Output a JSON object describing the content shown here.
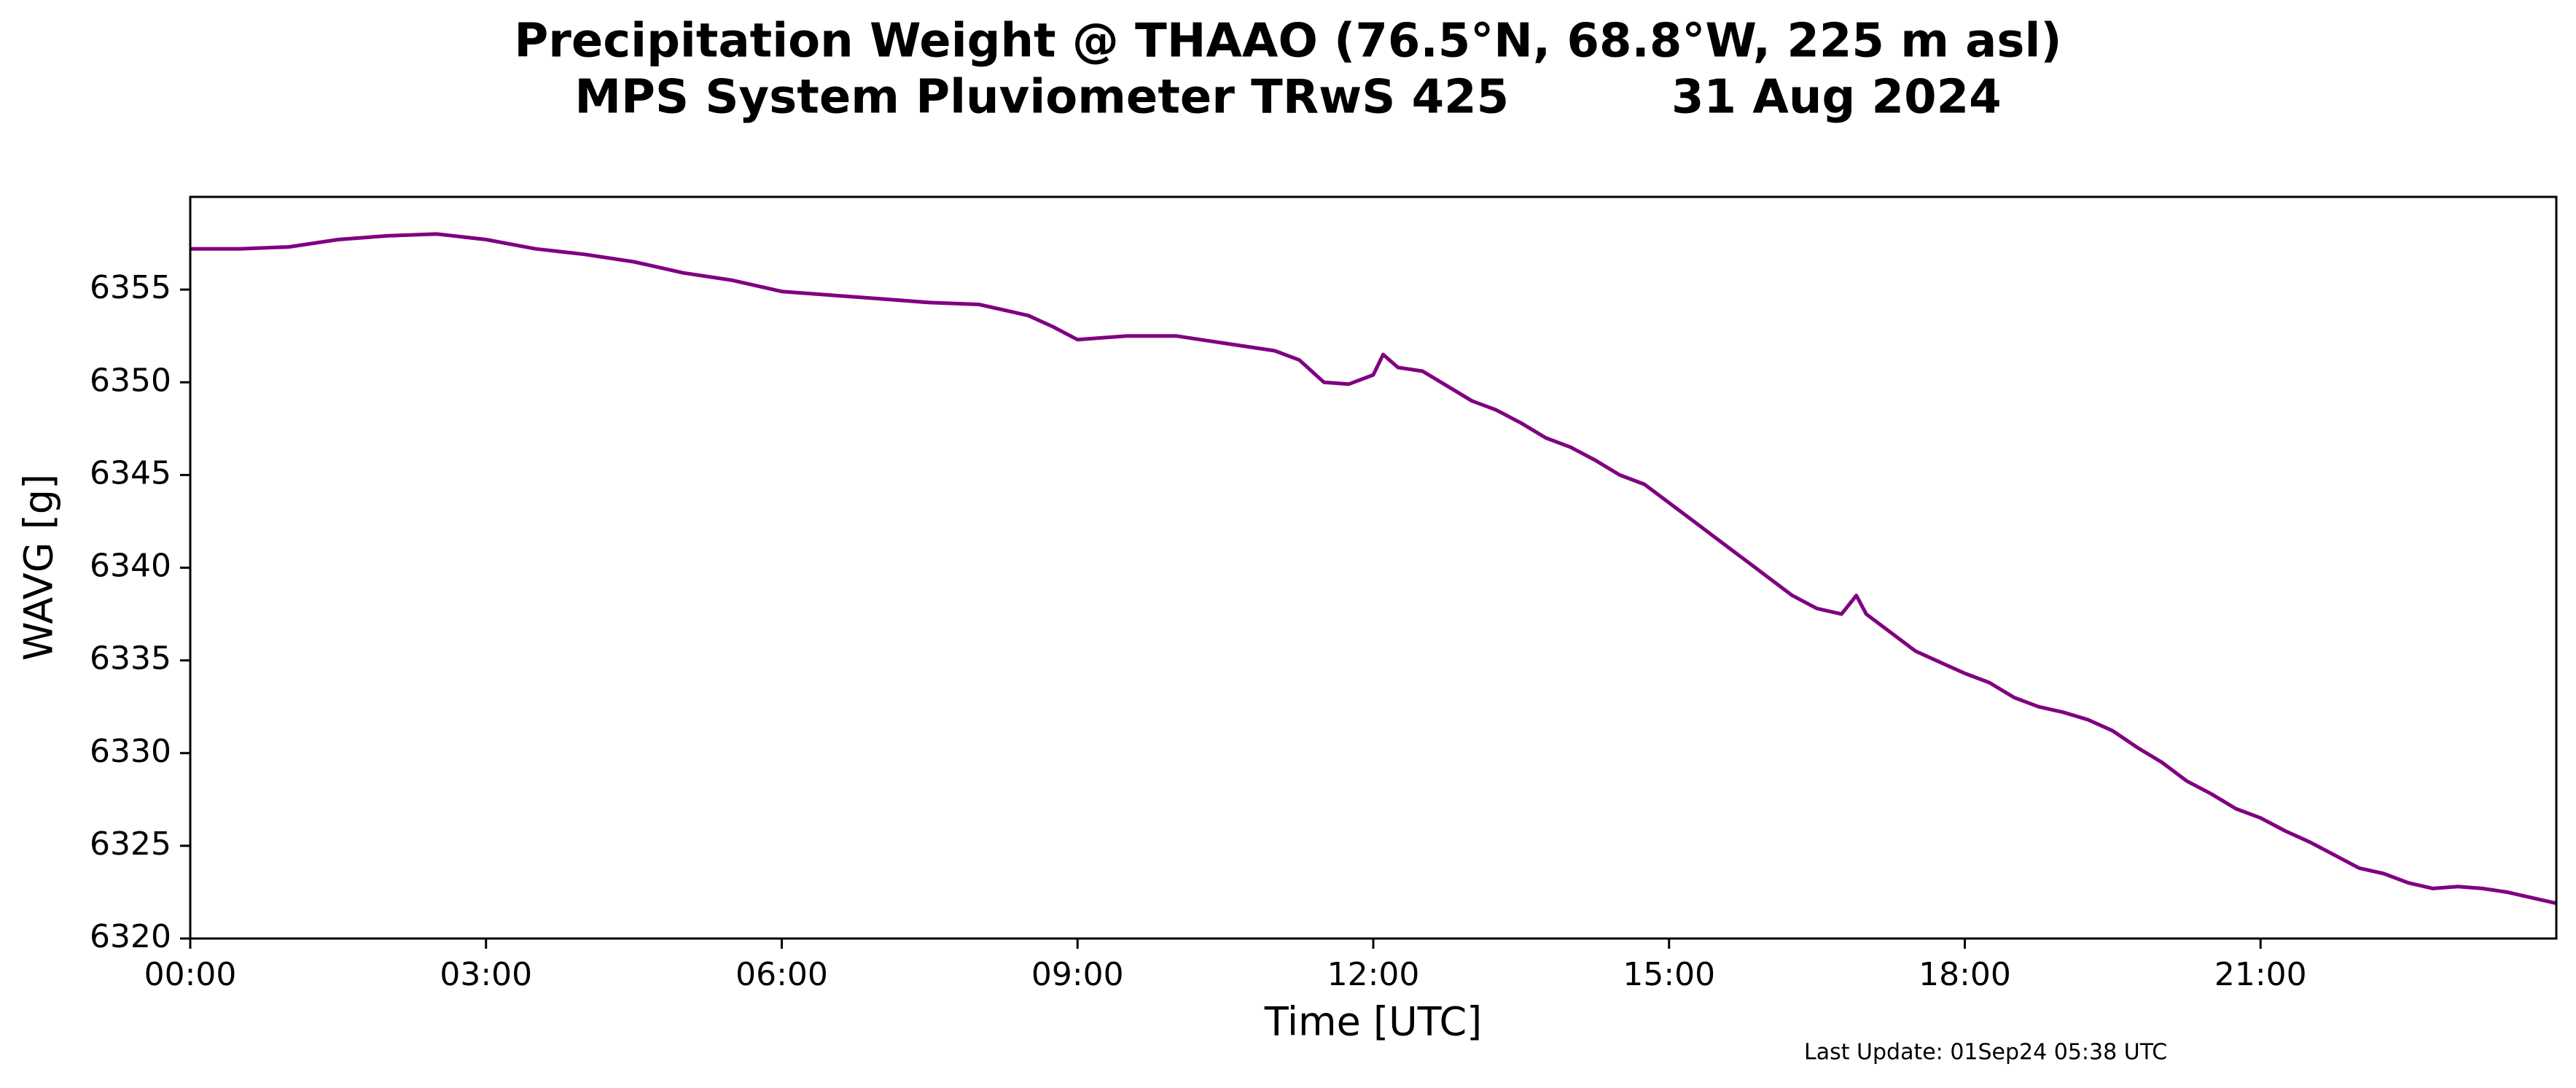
{
  "chart_data": {
    "type": "line",
    "title": "Precipitation Weight @ THAAO (76.5°N, 68.8°W, 225 m asl)",
    "subtitle": "MPS System Pluviometer TRwS 425          31 Aug 2024",
    "xlabel": "Time [UTC]",
    "ylabel": "WAVG [g]",
    "xlim": [
      0,
      24
    ],
    "ylim": [
      6320,
      6360
    ],
    "xticks": [
      0,
      3,
      6,
      9,
      12,
      15,
      18,
      21
    ],
    "xtick_labels": [
      "00:00",
      "03:00",
      "06:00",
      "09:00",
      "12:00",
      "15:00",
      "18:00",
      "21:00"
    ],
    "yticks": [
      6320,
      6325,
      6330,
      6335,
      6340,
      6345,
      6350,
      6355
    ],
    "grid": false,
    "line_color": "#800080",
    "annotation": "Last Update: 01Sep24 05:38 UTC",
    "series": [
      {
        "x": [
          0.0,
          0.5,
          1.0,
          1.5,
          2.0,
          2.5,
          3.0,
          3.5,
          4.0,
          4.5,
          5.0,
          5.5,
          6.0,
          6.5,
          7.0,
          7.5,
          8.0,
          8.5,
          8.75,
          9.0,
          9.5,
          10.0,
          10.5,
          11.0,
          11.25,
          11.5,
          11.75,
          12.0,
          12.1,
          12.25,
          12.5,
          12.75,
          13.0,
          13.25,
          13.5,
          13.75,
          14.0,
          14.25,
          14.5,
          14.75,
          15.0,
          15.25,
          15.5,
          15.75,
          16.0,
          16.25,
          16.5,
          16.75,
          16.9,
          17.0,
          17.25,
          17.5,
          17.75,
          18.0,
          18.25,
          18.5,
          18.75,
          19.0,
          19.25,
          19.5,
          19.75,
          20.0,
          20.25,
          20.5,
          20.75,
          21.0,
          21.25,
          21.5,
          21.75,
          22.0,
          22.25,
          22.5,
          22.75,
          23.0,
          23.25,
          23.5,
          23.75,
          24.0
        ],
        "values": [
          6357.2,
          6357.2,
          6357.3,
          6357.7,
          6357.9,
          6358.0,
          6357.7,
          6357.2,
          6356.9,
          6356.5,
          6355.9,
          6355.5,
          6354.9,
          6354.7,
          6354.5,
          6354.3,
          6354.2,
          6353.6,
          6353.0,
          6352.3,
          6352.5,
          6352.5,
          6352.1,
          6351.7,
          6351.2,
          6350.0,
          6349.9,
          6350.4,
          6351.5,
          6350.8,
          6350.6,
          6349.8,
          6349.0,
          6348.5,
          6347.8,
          6347.0,
          6346.5,
          6345.8,
          6345.0,
          6344.5,
          6343.5,
          6342.5,
          6341.5,
          6340.5,
          6339.5,
          6338.5,
          6337.8,
          6337.5,
          6338.5,
          6337.5,
          6336.5,
          6335.5,
          6334.9,
          6334.3,
          6333.8,
          6333.0,
          6332.5,
          6332.2,
          6331.8,
          6331.2,
          6330.3,
          6329.5,
          6328.5,
          6327.8,
          6327.0,
          6326.5,
          6325.8,
          6325.2,
          6324.5,
          6323.8,
          6323.5,
          6323.0,
          6322.7,
          6322.8,
          6322.7,
          6322.5,
          6322.2,
          6321.9
        ]
      }
    ]
  }
}
